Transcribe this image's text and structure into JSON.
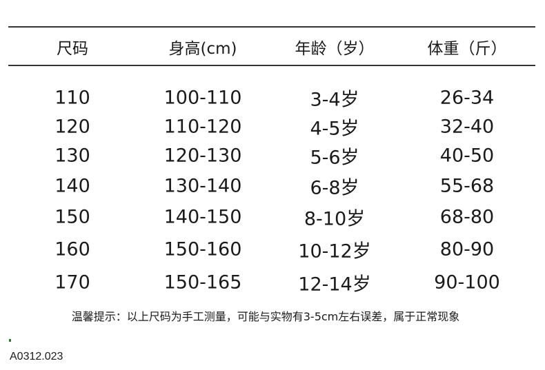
{
  "table": {
    "headers": [
      "尺码",
      "身高(cm)",
      "年龄（岁）",
      "体重（斤）"
    ],
    "rows": [
      [
        "110",
        "100-110",
        "3-4岁",
        "26-34"
      ],
      [
        "120",
        "110-120",
        "4-5岁",
        "32-40"
      ],
      [
        "130",
        "120-130",
        "5-6岁",
        "40-50"
      ],
      [
        "140",
        "130-140",
        "6-8岁",
        "55-68"
      ],
      [
        "150",
        "140-150",
        "8-10岁",
        "68-80"
      ],
      [
        "160",
        "150-160",
        "10-12岁",
        "80-90"
      ],
      [
        "170",
        "150-165",
        "12-14岁",
        "90-100"
      ]
    ]
  },
  "note": "温馨提示：以上尺码为手工测量，可能与实物有3-5cm左右误差，属于正常现象",
  "code": "A0312.023"
}
